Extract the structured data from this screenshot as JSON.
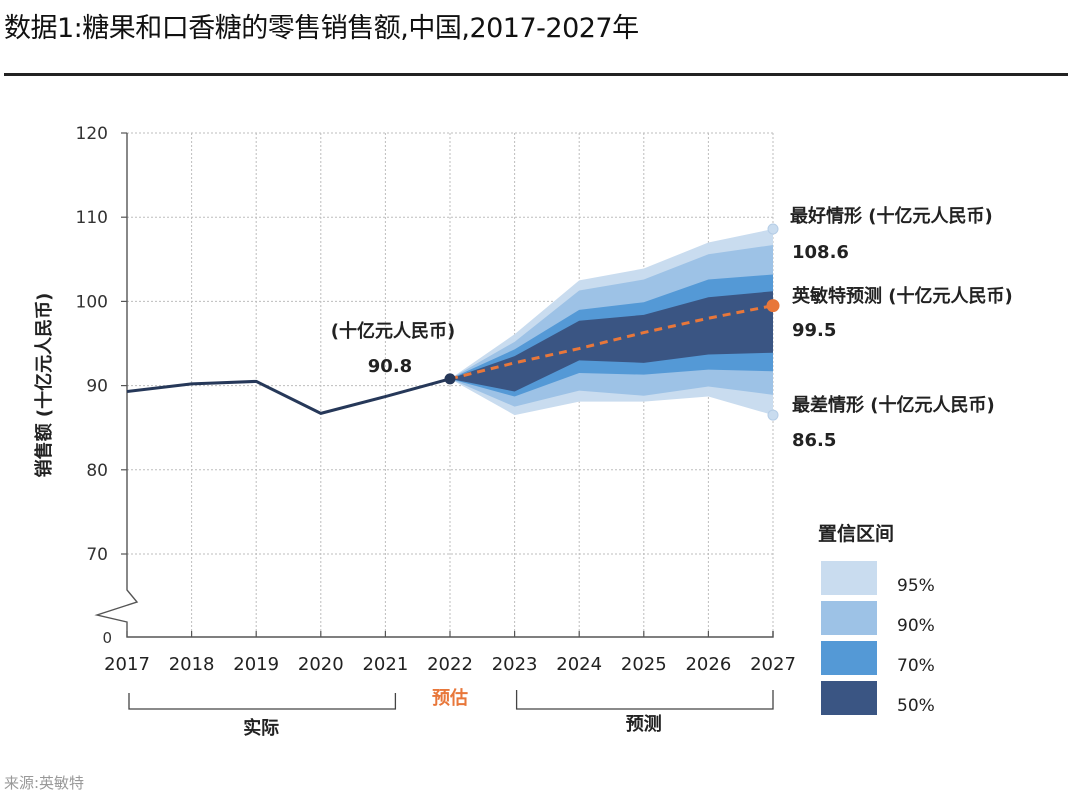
{
  "title": "数据1:糖果和口香糖的零售销售额,中国,2017-2027年",
  "source": "来源:英敏特",
  "chart_data": {
    "type": "line",
    "subtype": "fan-chart",
    "title": "数据1:糖果和口香糖的零售销售额,中国,2017-2027年",
    "xlabel": "",
    "ylabel": "销售额 (十亿元人民币)",
    "x": [
      2017,
      2018,
      2019,
      2020,
      2021,
      2022,
      2023,
      2024,
      2025,
      2026,
      2027
    ],
    "ylim": [
      65,
      120
    ],
    "yticks": [
      0,
      70,
      80,
      90,
      100,
      110,
      120
    ],
    "y_axis_break": true,
    "grid": true,
    "actual": {
      "name": "实际",
      "x": [
        2017,
        2018,
        2019,
        2020,
        2021,
        2022
      ],
      "values": [
        89.3,
        90.2,
        90.5,
        86.7,
        88.7,
        90.8
      ]
    },
    "forecast": {
      "name": "英敏特预测 (十亿元人民币)",
      "x": [
        2022,
        2023,
        2024,
        2025,
        2026,
        2027
      ],
      "values": [
        90.8,
        92.7,
        94.4,
        96.3,
        98.0,
        99.5
      ]
    },
    "confidence_bands": [
      {
        "name": "95%",
        "color": "#c9dcef",
        "upper": [
          90.8,
          96.1,
          102.5,
          103.9,
          107.0,
          108.6
        ],
        "lower": [
          90.8,
          86.5,
          88.1,
          88.1,
          88.7,
          86.5
        ]
      },
      {
        "name": "90%",
        "color": "#9dc2e6",
        "upper": [
          90.8,
          95.2,
          101.3,
          102.6,
          105.6,
          106.7
        ],
        "lower": [
          90.8,
          87.5,
          89.4,
          88.8,
          89.9,
          88.9
        ]
      },
      {
        "name": "70%",
        "color": "#5499d6",
        "upper": [
          90.8,
          94.3,
          99.0,
          99.9,
          102.6,
          103.2
        ],
        "lower": [
          90.8,
          88.7,
          91.5,
          91.3,
          91.9,
          91.7
        ]
      },
      {
        "name": "50%",
        "color": "#3a5583",
        "upper": [
          90.8,
          93.5,
          97.7,
          98.4,
          100.5,
          101.2
        ],
        "lower": [
          90.8,
          89.3,
          93.0,
          92.7,
          93.7,
          93.9
        ]
      }
    ],
    "annotations": {
      "estimate_label": "(十亿元人民币)",
      "estimate_value": "90.8",
      "best_label": "最好情形 (十亿元人民币)",
      "best_value": "108.6",
      "forecast_label": "英敏特预测 (十亿元人民币)",
      "forecast_value": "99.5",
      "worst_label": "最差情形 (十亿元人民币)",
      "worst_value": "86.5"
    },
    "period_labels": {
      "actual": "实际",
      "estimate": "预估",
      "forecast": "预测"
    },
    "legend": {
      "title": "置信区间",
      "position": "bottom-right",
      "items": [
        {
          "label": "95%",
          "color": "#c9dcef"
        },
        {
          "label": "90%",
          "color": "#9dc2e6"
        },
        {
          "label": "70%",
          "color": "#5499d6"
        },
        {
          "label": "50%",
          "color": "#3a5583"
        }
      ]
    },
    "colors": {
      "actual_line": "#263859",
      "forecast_line": "#e8773a",
      "estimate_text": "#e8773a"
    }
  }
}
